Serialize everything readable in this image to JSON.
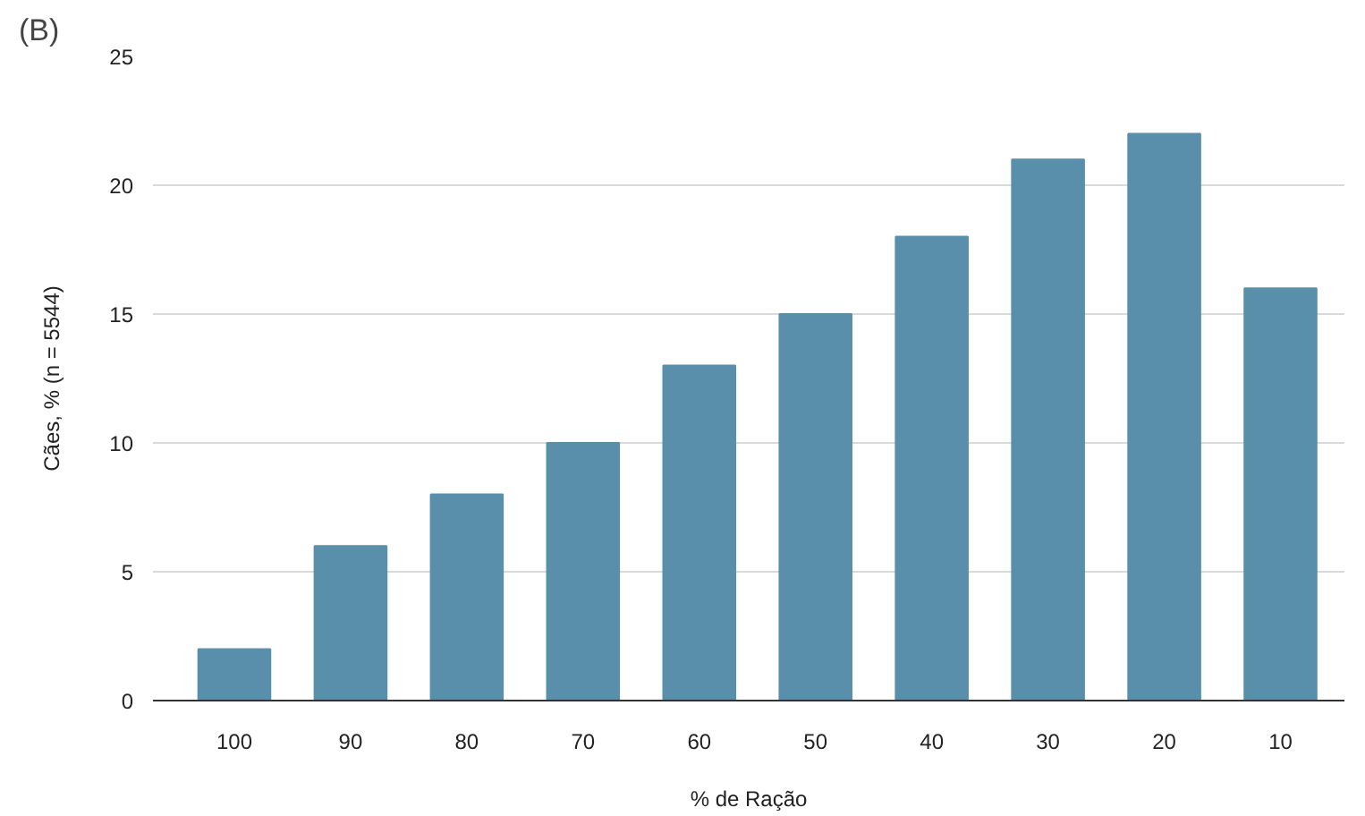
{
  "chart_data": {
    "type": "bar",
    "annotations": [
      "(B)"
    ],
    "xlabel": "% de Ração",
    "ylabel": "Cães, % (n = 5544)",
    "categories": [
      "100",
      "90",
      "80",
      "70",
      "60",
      "50",
      "40",
      "30",
      "20",
      "10"
    ],
    "values": [
      2,
      6,
      8,
      10,
      13,
      15,
      18,
      21,
      22,
      16
    ],
    "color": "#5a8fab",
    "ylim": [
      0,
      25
    ],
    "yticks": [
      0,
      5,
      10,
      15,
      20,
      25
    ],
    "grid": "y"
  }
}
